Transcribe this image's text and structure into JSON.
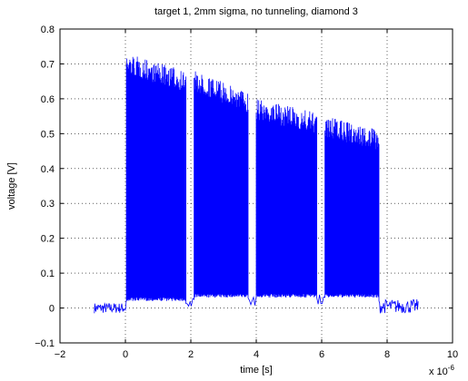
{
  "chart_data": {
    "type": "line",
    "title": "target 1, 2mm sigma, no tunneling, diamond 3",
    "xlabel": "time [s]",
    "ylabel": "voltage [V]",
    "x_exponent_label": "x 10",
    "x_exponent_power": "-6",
    "xlim": [
      -2,
      10
    ],
    "ylim": [
      -0.1,
      0.8
    ],
    "xticks": [
      -2,
      0,
      2,
      4,
      6,
      8,
      10
    ],
    "yticks": [
      -0.1,
      0,
      0.1,
      0.2,
      0.3,
      0.4,
      0.5,
      0.6,
      0.7,
      0.8
    ],
    "xtick_labels": [
      "−2",
      "0",
      "2",
      "4",
      "6",
      "8",
      "10"
    ],
    "ytick_labels": [
      "−0.1",
      "0",
      "0.1",
      "0.2",
      "0.3",
      "0.4",
      "0.5",
      "0.6",
      "0.7",
      "0.8"
    ],
    "grid": true,
    "line_color": "#0000ff",
    "series": [
      {
        "segments": [
          {
            "kind": "baseline",
            "x": [
              -0.95,
              0.0
            ],
            "baseline": 0.0,
            "peak": 0.015
          },
          {
            "kind": "burst",
            "x": [
              0.03,
              1.85
            ],
            "baseline": 0.03,
            "peak_start": 0.73,
            "peak_end": 0.68
          },
          {
            "kind": "gap",
            "x": [
              1.85,
              2.1
            ],
            "low": 0.0,
            "high": 0.03
          },
          {
            "kind": "burst",
            "x": [
              2.1,
              3.75
            ],
            "baseline": 0.04,
            "peak_start": 0.68,
            "peak_end": 0.62
          },
          {
            "kind": "gap",
            "x": [
              3.75,
              4.0
            ],
            "low": 0.0,
            "high": 0.04
          },
          {
            "kind": "burst",
            "x": [
              4.0,
              5.85
            ],
            "baseline": 0.04,
            "peak_start": 0.6,
            "peak_end": 0.56
          },
          {
            "kind": "gap",
            "x": [
              5.85,
              6.1
            ],
            "low": 0.01,
            "high": 0.04
          },
          {
            "kind": "burst",
            "x": [
              6.1,
              7.75
            ],
            "baseline": 0.04,
            "peak_start": 0.55,
            "peak_end": 0.51
          },
          {
            "kind": "baseline",
            "x": [
              7.75,
              8.95
            ],
            "baseline": 0.0,
            "peak": 0.025
          }
        ]
      }
    ]
  }
}
